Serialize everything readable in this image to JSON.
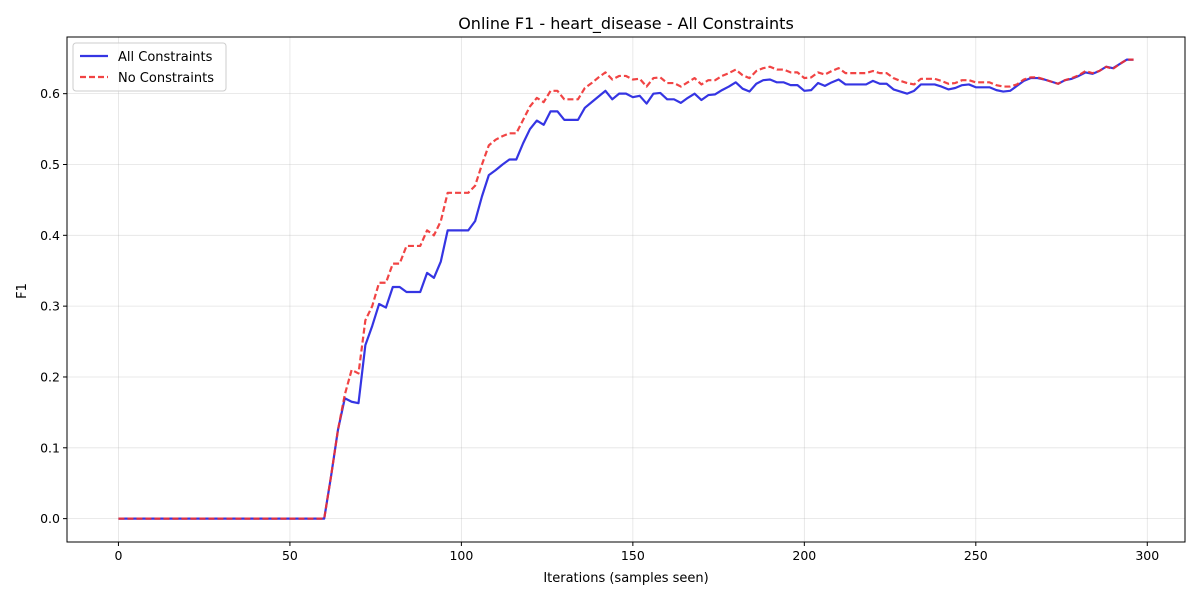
{
  "chart_data": {
    "type": "line",
    "title": "Online F1 - heart_disease - All Constraints",
    "xlabel": "Iterations (samples seen)",
    "ylabel": "F1",
    "xlim": [
      -15,
      311
    ],
    "ylim": [
      -0.033,
      0.68
    ],
    "xticks": [
      0,
      50,
      100,
      150,
      200,
      250,
      300
    ],
    "yticks": [
      0.0,
      0.1,
      0.2,
      0.3,
      0.4,
      0.5,
      0.6
    ],
    "ytick_labels": [
      "0.0",
      "0.1",
      "0.2",
      "0.3",
      "0.4",
      "0.5",
      "0.6"
    ],
    "grid": true,
    "legend_position": "top-left",
    "series": [
      {
        "name": "All Constraints",
        "color": "#1f1fe0",
        "style": "solid",
        "points": [
          [
            0,
            0
          ],
          [
            60,
            0
          ],
          [
            62,
            0.06
          ],
          [
            64,
            0.125
          ],
          [
            66,
            0.17
          ],
          [
            68,
            0.165
          ],
          [
            70,
            0.163
          ],
          [
            72,
            0.245
          ],
          [
            74,
            0.272
          ],
          [
            76,
            0.303
          ],
          [
            78,
            0.298
          ],
          [
            80,
            0.327
          ],
          [
            82,
            0.327
          ],
          [
            84,
            0.32
          ],
          [
            86,
            0.32
          ],
          [
            88,
            0.32
          ],
          [
            90,
            0.347
          ],
          [
            92,
            0.34
          ],
          [
            94,
            0.363
          ],
          [
            96,
            0.407
          ],
          [
            98,
            0.407
          ],
          [
            100,
            0.407
          ],
          [
            102,
            0.407
          ],
          [
            104,
            0.42
          ],
          [
            106,
            0.455
          ],
          [
            108,
            0.485
          ],
          [
            110,
            0.492
          ],
          [
            112,
            0.5
          ],
          [
            114,
            0.507
          ],
          [
            116,
            0.507
          ],
          [
            118,
            0.53
          ],
          [
            120,
            0.55
          ],
          [
            122,
            0.562
          ],
          [
            124,
            0.556
          ],
          [
            126,
            0.575
          ],
          [
            128,
            0.575
          ],
          [
            130,
            0.563
          ],
          [
            132,
            0.563
          ],
          [
            134,
            0.563
          ],
          [
            136,
            0.58
          ],
          [
            138,
            0.588
          ],
          [
            140,
            0.596
          ],
          [
            142,
            0.604
          ],
          [
            144,
            0.592
          ],
          [
            146,
            0.6
          ],
          [
            148,
            0.6
          ],
          [
            150,
            0.595
          ],
          [
            152,
            0.597
          ],
          [
            154,
            0.586
          ],
          [
            156,
            0.6
          ],
          [
            158,
            0.601
          ],
          [
            160,
            0.592
          ],
          [
            162,
            0.592
          ],
          [
            164,
            0.587
          ],
          [
            166,
            0.594
          ],
          [
            168,
            0.6
          ],
          [
            170,
            0.591
          ],
          [
            172,
            0.598
          ],
          [
            174,
            0.599
          ],
          [
            176,
            0.605
          ],
          [
            178,
            0.61
          ],
          [
            180,
            0.616
          ],
          [
            182,
            0.607
          ],
          [
            184,
            0.603
          ],
          [
            186,
            0.614
          ],
          [
            188,
            0.619
          ],
          [
            190,
            0.62
          ],
          [
            192,
            0.616
          ],
          [
            194,
            0.616
          ],
          [
            196,
            0.612
          ],
          [
            198,
            0.612
          ],
          [
            200,
            0.604
          ],
          [
            202,
            0.605
          ],
          [
            204,
            0.615
          ],
          [
            206,
            0.611
          ],
          [
            208,
            0.616
          ],
          [
            210,
            0.62
          ],
          [
            212,
            0.613
          ],
          [
            214,
            0.613
          ],
          [
            216,
            0.613
          ],
          [
            218,
            0.613
          ],
          [
            220,
            0.618
          ],
          [
            222,
            0.614
          ],
          [
            224,
            0.614
          ],
          [
            226,
            0.606
          ],
          [
            228,
            0.603
          ],
          [
            230,
            0.6
          ],
          [
            232,
            0.604
          ],
          [
            234,
            0.613
          ],
          [
            236,
            0.613
          ],
          [
            238,
            0.613
          ],
          [
            240,
            0.61
          ],
          [
            242,
            0.606
          ],
          [
            244,
            0.608
          ],
          [
            246,
            0.612
          ],
          [
            248,
            0.613
          ],
          [
            250,
            0.609
          ],
          [
            252,
            0.609
          ],
          [
            254,
            0.609
          ],
          [
            256,
            0.605
          ],
          [
            258,
            0.603
          ],
          [
            260,
            0.604
          ],
          [
            262,
            0.611
          ],
          [
            264,
            0.618
          ],
          [
            266,
            0.622
          ],
          [
            268,
            0.622
          ],
          [
            270,
            0.62
          ],
          [
            272,
            0.617
          ],
          [
            274,
            0.614
          ],
          [
            276,
            0.619
          ],
          [
            278,
            0.621
          ],
          [
            280,
            0.625
          ],
          [
            282,
            0.63
          ],
          [
            284,
            0.628
          ],
          [
            286,
            0.632
          ],
          [
            288,
            0.638
          ],
          [
            290,
            0.636
          ],
          [
            292,
            0.642
          ],
          [
            294,
            0.648
          ],
          [
            296,
            0.648
          ]
        ]
      },
      {
        "name": "No Constraints",
        "color": "#f03030",
        "style": "dashed",
        "points": [
          [
            0,
            0
          ],
          [
            60,
            0
          ],
          [
            62,
            0.06
          ],
          [
            64,
            0.125
          ],
          [
            66,
            0.175
          ],
          [
            68,
            0.21
          ],
          [
            70,
            0.205
          ],
          [
            72,
            0.28
          ],
          [
            74,
            0.3
          ],
          [
            76,
            0.333
          ],
          [
            78,
            0.333
          ],
          [
            80,
            0.36
          ],
          [
            82,
            0.36
          ],
          [
            84,
            0.385
          ],
          [
            86,
            0.385
          ],
          [
            88,
            0.385
          ],
          [
            90,
            0.407
          ],
          [
            92,
            0.4
          ],
          [
            94,
            0.42
          ],
          [
            96,
            0.46
          ],
          [
            98,
            0.46
          ],
          [
            100,
            0.46
          ],
          [
            102,
            0.46
          ],
          [
            104,
            0.47
          ],
          [
            106,
            0.5
          ],
          [
            108,
            0.527
          ],
          [
            110,
            0.535
          ],
          [
            112,
            0.54
          ],
          [
            114,
            0.544
          ],
          [
            116,
            0.544
          ],
          [
            118,
            0.563
          ],
          [
            120,
            0.582
          ],
          [
            122,
            0.594
          ],
          [
            124,
            0.588
          ],
          [
            126,
            0.604
          ],
          [
            128,
            0.604
          ],
          [
            130,
            0.592
          ],
          [
            132,
            0.592
          ],
          [
            134,
            0.592
          ],
          [
            136,
            0.608
          ],
          [
            138,
            0.615
          ],
          [
            140,
            0.623
          ],
          [
            142,
            0.63
          ],
          [
            144,
            0.62
          ],
          [
            146,
            0.625
          ],
          [
            148,
            0.625
          ],
          [
            150,
            0.62
          ],
          [
            152,
            0.621
          ],
          [
            154,
            0.61
          ],
          [
            156,
            0.622
          ],
          [
            158,
            0.623
          ],
          [
            160,
            0.615
          ],
          [
            162,
            0.615
          ],
          [
            164,
            0.61
          ],
          [
            166,
            0.616
          ],
          [
            168,
            0.622
          ],
          [
            170,
            0.613
          ],
          [
            172,
            0.619
          ],
          [
            174,
            0.619
          ],
          [
            176,
            0.625
          ],
          [
            178,
            0.629
          ],
          [
            180,
            0.634
          ],
          [
            182,
            0.626
          ],
          [
            184,
            0.622
          ],
          [
            186,
            0.632
          ],
          [
            188,
            0.636
          ],
          [
            190,
            0.638
          ],
          [
            192,
            0.634
          ],
          [
            194,
            0.634
          ],
          [
            196,
            0.63
          ],
          [
            198,
            0.63
          ],
          [
            200,
            0.622
          ],
          [
            202,
            0.623
          ],
          [
            204,
            0.63
          ],
          [
            206,
            0.627
          ],
          [
            208,
            0.632
          ],
          [
            210,
            0.636
          ],
          [
            212,
            0.629
          ],
          [
            214,
            0.629
          ],
          [
            216,
            0.629
          ],
          [
            218,
            0.629
          ],
          [
            220,
            0.632
          ],
          [
            222,
            0.629
          ],
          [
            224,
            0.629
          ],
          [
            226,
            0.622
          ],
          [
            228,
            0.618
          ],
          [
            230,
            0.615
          ],
          [
            232,
            0.613
          ],
          [
            234,
            0.621
          ],
          [
            236,
            0.621
          ],
          [
            238,
            0.621
          ],
          [
            240,
            0.618
          ],
          [
            242,
            0.614
          ],
          [
            244,
            0.615
          ],
          [
            246,
            0.619
          ],
          [
            248,
            0.619
          ],
          [
            250,
            0.616
          ],
          [
            252,
            0.616
          ],
          [
            254,
            0.616
          ],
          [
            256,
            0.612
          ],
          [
            258,
            0.61
          ],
          [
            260,
            0.61
          ],
          [
            262,
            0.613
          ],
          [
            264,
            0.62
          ],
          [
            266,
            0.623
          ],
          [
            268,
            0.623
          ],
          [
            270,
            0.62
          ],
          [
            272,
            0.617
          ],
          [
            274,
            0.614
          ],
          [
            276,
            0.619
          ],
          [
            278,
            0.622
          ],
          [
            280,
            0.626
          ],
          [
            282,
            0.632
          ],
          [
            284,
            0.629
          ],
          [
            286,
            0.632
          ],
          [
            288,
            0.638
          ],
          [
            290,
            0.635
          ],
          [
            292,
            0.642
          ],
          [
            294,
            0.648
          ],
          [
            296,
            0.648
          ]
        ]
      }
    ]
  }
}
